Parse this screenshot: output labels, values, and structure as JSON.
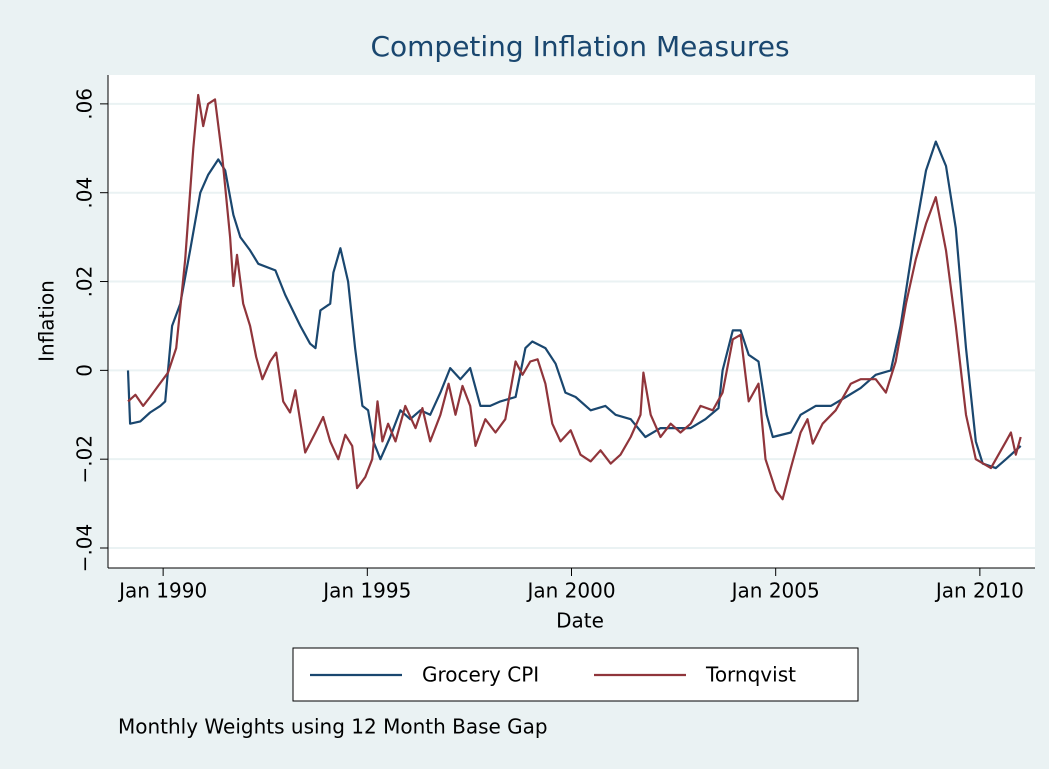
{
  "chart_data": {
    "type": "line",
    "title": "Competing Inflation Measures",
    "xlabel": "Date",
    "ylabel": "Inflation",
    "note": "Monthly Weights using 12 Month Base Gap",
    "xlim": [
      1988.65,
      2011.35
    ],
    "ylim": [
      -0.0445,
      0.0665
    ],
    "xticks": [
      {
        "value": 1990,
        "label": "Jan 1990"
      },
      {
        "value": 1995,
        "label": "Jan 1995"
      },
      {
        "value": 2000,
        "label": "Jan 2000"
      },
      {
        "value": 2005,
        "label": "Jan 2005"
      },
      {
        "value": 2010,
        "label": "Jan 2010"
      }
    ],
    "yticks": [
      {
        "value": -0.04,
        "label": "−.04"
      },
      {
        "value": -0.02,
        "label": "−.02"
      },
      0,
      {
        "value": 0.02,
        "label": ".02"
      },
      {
        "value": 0.04,
        "label": ".04"
      },
      {
        "value": 0.06,
        "label": ".06"
      }
    ],
    "grid": true,
    "legend": "bottom",
    "series": [
      {
        "name": "Grocery CPI",
        "color": "#1a476f",
        "x": [
          1989.14,
          1989.19,
          1989.44,
          1989.68,
          1989.93,
          1990.05,
          1990.22,
          1990.42,
          1990.66,
          1990.91,
          1991.1,
          1991.35,
          1991.52,
          1991.72,
          1991.89,
          1992.13,
          1992.33,
          1992.75,
          1992.99,
          1993.36,
          1993.6,
          1993.73,
          1993.85,
          1994.09,
          1994.17,
          1994.34,
          1994.53,
          1994.7,
          1994.88,
          1995.02,
          1995.15,
          1995.32,
          1995.56,
          1995.81,
          1996.05,
          1996.3,
          1996.54,
          1996.79,
          1997.03,
          1997.28,
          1997.52,
          1997.77,
          1998.01,
          1998.26,
          1998.63,
          1998.87,
          1999.04,
          1999.36,
          1999.61,
          1999.85,
          2000.1,
          2000.47,
          2000.83,
          2001.08,
          2001.45,
          2001.81,
          2002.18,
          2002.43,
          2002.92,
          2003.28,
          2003.6,
          2003.7,
          2003.95,
          2004.14,
          2004.34,
          2004.58,
          2004.78,
          2004.93,
          2005.37,
          2005.61,
          2005.98,
          2006.35,
          2006.72,
          2007.08,
          2007.45,
          2007.82,
          2008.06,
          2008.36,
          2008.68,
          2008.92,
          2009.17,
          2009.41,
          2009.66,
          2009.9,
          2010.07,
          2010.39,
          2010.64,
          2011.0
        ],
        "values": [
          0,
          -0.012,
          -0.0115,
          -0.0095,
          -0.008,
          -0.007,
          0.01,
          0.015,
          0.027,
          0.04,
          0.044,
          0.0475,
          0.045,
          0.035,
          0.03,
          0.027,
          0.024,
          0.0225,
          0.017,
          0.01,
          0.006,
          0.005,
          0.0135,
          0.015,
          0.022,
          0.0275,
          0.02,
          0.005,
          -0.008,
          -0.009,
          -0.016,
          -0.02,
          -0.015,
          -0.009,
          -0.011,
          -0.009,
          -0.01,
          -0.005,
          0.0005,
          -0.002,
          0.0005,
          -0.008,
          -0.008,
          -0.007,
          -0.006,
          0.005,
          0.0065,
          0.005,
          0.0015,
          -0.005,
          -0.006,
          -0.009,
          -0.008,
          -0.01,
          -0.011,
          -0.015,
          -0.013,
          -0.013,
          -0.013,
          -0.011,
          -0.0085,
          0,
          0.009,
          0.009,
          0.0035,
          0.002,
          -0.01,
          -0.015,
          -0.014,
          -0.01,
          -0.008,
          -0.008,
          -0.006,
          -0.004,
          -0.001,
          0,
          0.01,
          0.028,
          0.045,
          0.0515,
          0.046,
          0.032,
          0.005,
          -0.016,
          -0.021,
          -0.022,
          -0.02,
          -0.017
        ]
      },
      {
        "name": "Tornqvist",
        "color": "#90353b",
        "x": [
          1989.14,
          1989.32,
          1989.51,
          1989.68,
          1989.88,
          1990.12,
          1990.32,
          1990.54,
          1990.74,
          1990.86,
          1990.98,
          1991.1,
          1991.27,
          1991.45,
          1991.64,
          1991.72,
          1991.81,
          1991.96,
          1992.13,
          1992.28,
          1992.43,
          1992.62,
          1992.77,
          1992.94,
          1993.11,
          1993.24,
          1993.48,
          1993.73,
          1993.92,
          1994.09,
          1994.29,
          1994.46,
          1994.63,
          1994.75,
          1994.95,
          1995.12,
          1995.25,
          1995.37,
          1995.51,
          1995.69,
          1995.93,
          1996.18,
          1996.35,
          1996.54,
          1996.79,
          1996.99,
          1997.16,
          1997.33,
          1997.52,
          1997.65,
          1997.89,
          1998.14,
          1998.38,
          1998.63,
          1998.8,
          1998.99,
          1999.17,
          1999.36,
          1999.53,
          1999.73,
          1999.98,
          2000.22,
          2000.47,
          2000.71,
          2000.96,
          2001.2,
          2001.45,
          2001.69,
          2001.76,
          2001.94,
          2002.18,
          2002.43,
          2002.67,
          2002.92,
          2003.16,
          2003.46,
          2003.7,
          2003.95,
          2004.14,
          2004.34,
          2004.58,
          2004.75,
          2005.0,
          2005.17,
          2005.37,
          2005.61,
          2005.78,
          2005.91,
          2006.15,
          2006.47,
          2006.84,
          2007.08,
          2007.45,
          2007.7,
          2007.94,
          2008.19,
          2008.43,
          2008.68,
          2008.92,
          2009.17,
          2009.41,
          2009.66,
          2009.9,
          2010.27,
          2010.64,
          2010.76,
          2010.88,
          2011.0
        ],
        "values": [
          -0.007,
          -0.0055,
          -0.008,
          -0.006,
          -0.0035,
          -0.0005,
          0.005,
          0.025,
          0.05,
          0.062,
          0.055,
          0.06,
          0.061,
          0.048,
          0.03,
          0.019,
          0.026,
          0.015,
          0.01,
          0.003,
          -0.002,
          0.002,
          0.004,
          -0.007,
          -0.0095,
          -0.0045,
          -0.0185,
          -0.014,
          -0.0105,
          -0.016,
          -0.02,
          -0.0145,
          -0.017,
          -0.0265,
          -0.024,
          -0.02,
          -0.007,
          -0.016,
          -0.012,
          -0.016,
          -0.008,
          -0.013,
          -0.0085,
          -0.016,
          -0.01,
          -0.003,
          -0.01,
          -0.0035,
          -0.008,
          -0.017,
          -0.011,
          -0.014,
          -0.011,
          0.002,
          -0.001,
          0.002,
          0.0025,
          -0.003,
          -0.012,
          -0.016,
          -0.0135,
          -0.019,
          -0.0205,
          -0.018,
          -0.021,
          -0.019,
          -0.015,
          -0.01,
          -0.0005,
          -0.01,
          -0.015,
          -0.012,
          -0.014,
          -0.012,
          -0.008,
          -0.009,
          -0.005,
          0.007,
          0.008,
          -0.007,
          -0.003,
          -0.02,
          -0.027,
          -0.029,
          -0.022,
          -0.014,
          -0.011,
          -0.0165,
          -0.012,
          -0.009,
          -0.003,
          -0.002,
          -0.002,
          -0.005,
          0.002,
          0.015,
          0.025,
          0.033,
          0.039,
          0.027,
          0.01,
          -0.01,
          -0.02,
          -0.022,
          -0.016,
          -0.014,
          -0.019,
          -0.015
        ]
      }
    ]
  }
}
